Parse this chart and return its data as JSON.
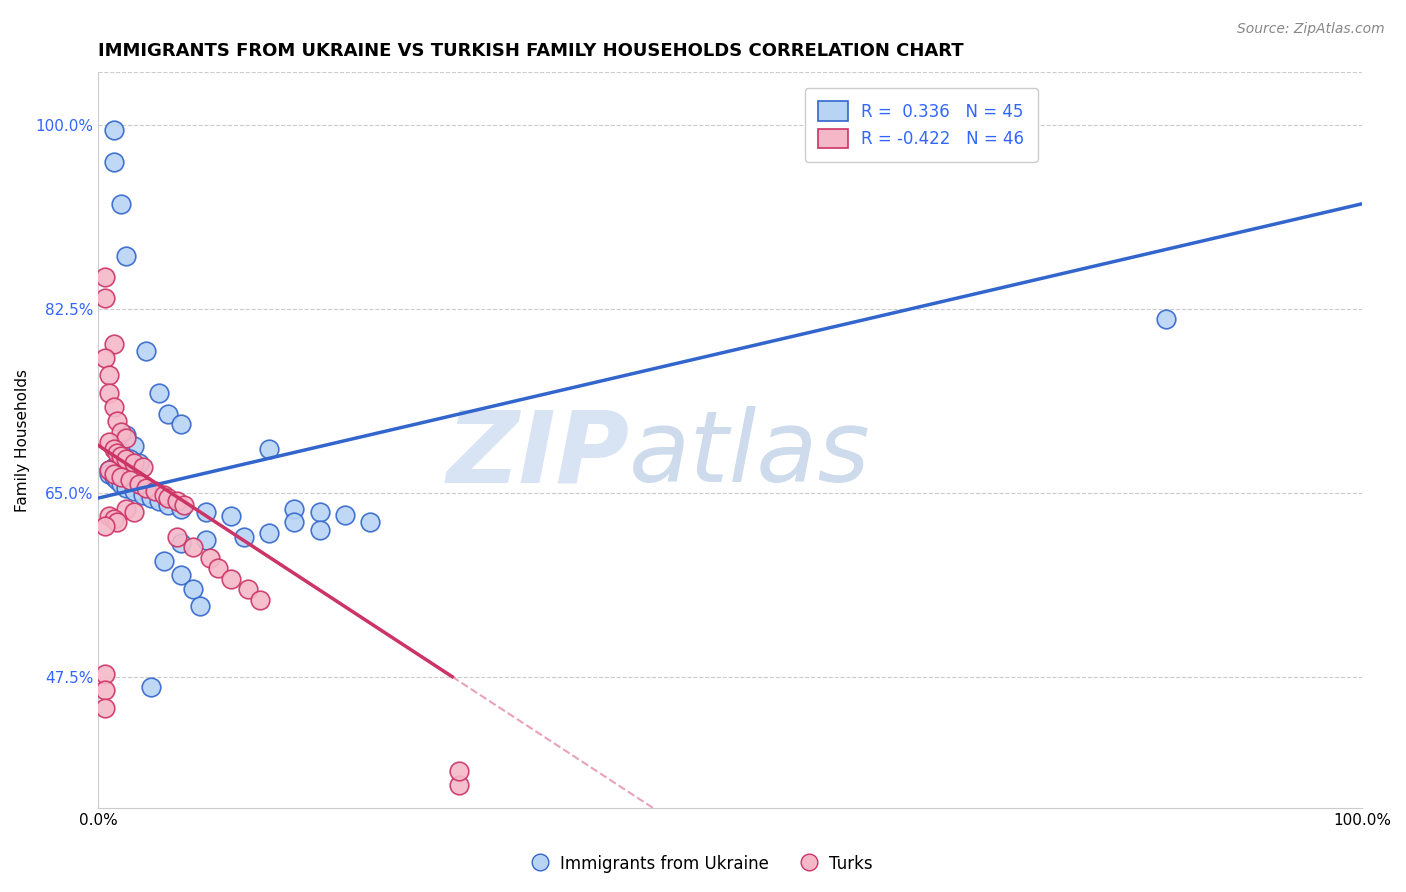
{
  "title": "IMMIGRANTS FROM UKRAINE VS TURKISH FAMILY HOUSEHOLDS CORRELATION CHART",
  "source": "Source: ZipAtlas.com",
  "ylabel": "Family Households",
  "xlim": [
    0.0,
    1.0
  ],
  "ylim": [
    0.35,
    1.05
  ],
  "xtick_positions": [
    0.0,
    1.0
  ],
  "xtick_labels": [
    "0.0%",
    "100.0%"
  ],
  "ytick_values": [
    0.475,
    0.65,
    0.825,
    1.0
  ],
  "ytick_labels": [
    "47.5%",
    "65.0%",
    "82.5%",
    "100.0%"
  ],
  "watermark_zip": "ZIP",
  "watermark_atlas": "atlas",
  "legend": {
    "ukraine_r": "0.336",
    "ukraine_n": "45",
    "turks_r": "-0.422",
    "turks_n": "46"
  },
  "ukraine_face_color": "#b8d4f5",
  "turks_face_color": "#f5b8c8",
  "ukraine_edge_color": "#3366cc",
  "turks_edge_color": "#cc3366",
  "ukraine_line_color": "#3366cc",
  "turks_line_color": "#cc3366",
  "ukraine_scatter": [
    [
      0.012,
      0.995
    ],
    [
      0.012,
      0.965
    ],
    [
      0.018,
      0.925
    ],
    [
      0.022,
      0.875
    ],
    [
      0.038,
      0.785
    ],
    [
      0.048,
      0.745
    ],
    [
      0.055,
      0.725
    ],
    [
      0.065,
      0.715
    ],
    [
      0.022,
      0.705
    ],
    [
      0.028,
      0.695
    ],
    [
      0.018,
      0.688
    ],
    [
      0.025,
      0.682
    ],
    [
      0.032,
      0.678
    ],
    [
      0.012,
      0.675
    ],
    [
      0.008,
      0.672
    ],
    [
      0.008,
      0.668
    ],
    [
      0.012,
      0.665
    ],
    [
      0.015,
      0.662
    ],
    [
      0.018,
      0.658
    ],
    [
      0.022,
      0.655
    ],
    [
      0.028,
      0.652
    ],
    [
      0.035,
      0.648
    ],
    [
      0.042,
      0.645
    ],
    [
      0.048,
      0.642
    ],
    [
      0.055,
      0.638
    ],
    [
      0.065,
      0.635
    ],
    [
      0.085,
      0.632
    ],
    [
      0.105,
      0.628
    ],
    [
      0.135,
      0.692
    ],
    [
      0.155,
      0.635
    ],
    [
      0.175,
      0.632
    ],
    [
      0.195,
      0.629
    ],
    [
      0.215,
      0.622
    ],
    [
      0.155,
      0.622
    ],
    [
      0.175,
      0.615
    ],
    [
      0.135,
      0.612
    ],
    [
      0.115,
      0.608
    ],
    [
      0.085,
      0.605
    ],
    [
      0.065,
      0.602
    ],
    [
      0.052,
      0.585
    ],
    [
      0.065,
      0.572
    ],
    [
      0.075,
      0.558
    ],
    [
      0.08,
      0.542
    ],
    [
      0.845,
      0.815
    ],
    [
      0.042,
      0.465
    ]
  ],
  "turks_scatter": [
    [
      0.005,
      0.855
    ],
    [
      0.005,
      0.835
    ],
    [
      0.012,
      0.792
    ],
    [
      0.005,
      0.778
    ],
    [
      0.008,
      0.762
    ],
    [
      0.008,
      0.745
    ],
    [
      0.012,
      0.732
    ],
    [
      0.015,
      0.718
    ],
    [
      0.018,
      0.708
    ],
    [
      0.022,
      0.702
    ],
    [
      0.008,
      0.698
    ],
    [
      0.012,
      0.692
    ],
    [
      0.015,
      0.688
    ],
    [
      0.018,
      0.685
    ],
    [
      0.022,
      0.682
    ],
    [
      0.028,
      0.678
    ],
    [
      0.035,
      0.675
    ],
    [
      0.008,
      0.672
    ],
    [
      0.012,
      0.668
    ],
    [
      0.018,
      0.665
    ],
    [
      0.025,
      0.662
    ],
    [
      0.032,
      0.658
    ],
    [
      0.038,
      0.655
    ],
    [
      0.045,
      0.652
    ],
    [
      0.052,
      0.648
    ],
    [
      0.055,
      0.645
    ],
    [
      0.062,
      0.642
    ],
    [
      0.068,
      0.638
    ],
    [
      0.022,
      0.635
    ],
    [
      0.028,
      0.632
    ],
    [
      0.008,
      0.628
    ],
    [
      0.012,
      0.625
    ],
    [
      0.015,
      0.622
    ],
    [
      0.005,
      0.618
    ],
    [
      0.062,
      0.608
    ],
    [
      0.075,
      0.598
    ],
    [
      0.088,
      0.588
    ],
    [
      0.095,
      0.578
    ],
    [
      0.105,
      0.568
    ],
    [
      0.118,
      0.558
    ],
    [
      0.128,
      0.548
    ],
    [
      0.005,
      0.478
    ],
    [
      0.005,
      0.462
    ],
    [
      0.005,
      0.445
    ],
    [
      0.285,
      0.372
    ],
    [
      0.285,
      0.385
    ]
  ],
  "grid_color": "#cccccc",
  "background_color": "#ffffff",
  "title_fontsize": 13,
  "axis_label_fontsize": 11,
  "tick_fontsize": 11,
  "source_fontsize": 10
}
